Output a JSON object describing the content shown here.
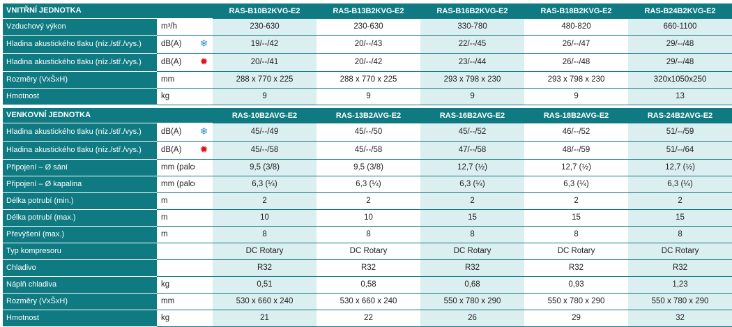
{
  "indoor": {
    "title": "VNITŘNÍ JEDNOTKA",
    "models": [
      "RAS-B10B2KVG-E2",
      "RAS-B13B2KVG-E2",
      "RAS-B16B2KVG-E2",
      "RAS-B18B2KVG-E2",
      "RAS-B24B2KVG-E2"
    ],
    "rows": [
      {
        "label": "Vzduchový výkon",
        "unit": "m³/h",
        "icon": "",
        "values": [
          "230-630",
          "230-630",
          "330-780",
          "480-820",
          "660-1100"
        ]
      },
      {
        "label": "Hladina akustického tlaku (níz./stř./vys.)",
        "unit": "dB(A)",
        "icon": "cooling-snowflake-icon",
        "values": [
          "19/--/42",
          "20/--/43",
          "22/--/45",
          "26/--/47",
          "29/--/48"
        ]
      },
      {
        "label": "Hladina akustického tlaku (níz./stř./vys.)",
        "unit": "dB(A)",
        "icon": "heating-sun-icon",
        "values": [
          "20/--/41",
          "20/--/42",
          "23/--/44",
          "26/--/48",
          "29/--/48"
        ]
      },
      {
        "label": "Rozměry (VxŠxH)",
        "unit": "mm",
        "icon": "",
        "values": [
          "288 x 770 x 225",
          "288 x 770 x 225",
          "293 x 798 x 230",
          "293 x 798 x 230",
          "320x1050x250"
        ]
      },
      {
        "label": "Hmotnost",
        "unit": "kg",
        "icon": "",
        "values": [
          "9",
          "9",
          "9",
          "9",
          "13"
        ]
      }
    ]
  },
  "outdoor": {
    "title": "VENKOVNÍ JEDNOTKA",
    "models": [
      "RAS-10B2AVG-E2",
      "RAS-13B2AVG-E2",
      "RAS-16B2AVG-E2",
      "RAS-18B2AVG-E2",
      "RAS-24B2AVG-E2"
    ],
    "rows": [
      {
        "label": "Hladina akustického tlaku (níz./stř./vys.)",
        "unit": "dB(A)",
        "icon": "cooling-snowflake-icon",
        "values": [
          "45/--/49",
          "45/--/50",
          "45/--/52",
          "46/--/52",
          "51/--/59"
        ]
      },
      {
        "label": "Hladina akustického tlaku (níz./stř./vys.)",
        "unit": "dB(A)",
        "icon": "heating-sun-icon",
        "values": [
          "45/--/58",
          "45/--/58",
          "47/--/58",
          "48/--/59",
          "51/--/64"
        ]
      },
      {
        "label": "Připojení – Ø sání",
        "unit": "mm (palce)",
        "icon": "",
        "values": [
          "9,5 (3/8)",
          "9,5 (3/8)",
          "12,7 (½)",
          "12,7 (½)",
          "12,7 (½)"
        ]
      },
      {
        "label": "Připojení – Ø kapalina",
        "unit": "mm (palce)",
        "icon": "",
        "values": [
          "6,3 (¼)",
          "6,3 (¼)",
          "6,3 (¼)",
          "6,3 (¼)",
          "6,3 (¼)"
        ]
      },
      {
        "label": "Délka potrubí (min.)",
        "unit": "m",
        "icon": "",
        "values": [
          "2",
          "2",
          "2",
          "2",
          "2"
        ]
      },
      {
        "label": "Délka potrubí (max.)",
        "unit": "m",
        "icon": "",
        "values": [
          "10",
          "10",
          "15",
          "15",
          "15"
        ]
      },
      {
        "label": "Převýšení (max.)",
        "unit": "m",
        "icon": "",
        "values": [
          "8",
          "8",
          "8",
          "8",
          "8"
        ]
      },
      {
        "label": "Typ kompresoru",
        "unit": "",
        "icon": "",
        "values": [
          "DC Rotary",
          "DC Rotary",
          "DC Rotary",
          "DC Rotary",
          "DC Rotary"
        ]
      },
      {
        "label": "Chladivo",
        "unit": "",
        "icon": "",
        "values": [
          "R32",
          "R32",
          "R32",
          "R32",
          "R32"
        ]
      },
      {
        "label": "Náplň chladiva",
        "unit": "kg",
        "icon": "",
        "values": [
          "0,51",
          "0,58",
          "0,68",
          "0,93",
          "1,23"
        ]
      },
      {
        "label": "Rozměry (VxŠxH)",
        "unit": "mm",
        "icon": "",
        "values": [
          "530 x 660 x 240",
          "530 x 660 x 240",
          "550 x 780 x 290",
          "550 x 780 x 290",
          "550 x 780 x 290"
        ]
      },
      {
        "label": "Hmotnost",
        "unit": "kg",
        "icon": "",
        "values": [
          "21",
          "22",
          "26",
          "29",
          "32"
        ]
      }
    ]
  },
  "colors": {
    "header": "#0f7a82",
    "shade": "#dbeef0",
    "cool_icon": "#2b8ed6",
    "heat_icon": "#e0121b"
  }
}
